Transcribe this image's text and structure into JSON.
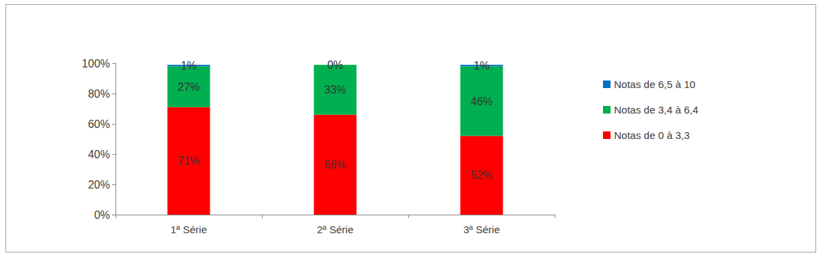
{
  "chart_data": {
    "type": "bar",
    "stacked": true,
    "data_labels": true,
    "grid": false,
    "legend": "right",
    "categories": [
      "1ª Série",
      "2ª Série",
      "3ª Série"
    ],
    "series": [
      {
        "name": "Notas de 0 à 3,3",
        "color": "#ff0000",
        "values": [
          71,
          66,
          52
        ],
        "value_labels": [
          "71%",
          "66%",
          "52%"
        ]
      },
      {
        "name": "Notas de 3,4 à 6,4",
        "color": "#00b050",
        "values": [
          27,
          33,
          46
        ],
        "value_labels": [
          "27%",
          "33%",
          "46%"
        ]
      },
      {
        "name": "Notas de 6,5 à 10",
        "color": "#0070c0",
        "values": [
          1,
          0,
          1
        ],
        "value_labels": [
          "1%",
          "0%",
          "1%"
        ]
      }
    ],
    "ylim": [
      0,
      100
    ],
    "yticks": [
      {
        "value": 0,
        "label": "0%"
      },
      {
        "value": 20,
        "label": "20%"
      },
      {
        "value": 40,
        "label": "40%"
      },
      {
        "value": 60,
        "label": "60%"
      },
      {
        "value": 80,
        "label": "80%"
      },
      {
        "value": 100,
        "label": "100%"
      }
    ]
  }
}
